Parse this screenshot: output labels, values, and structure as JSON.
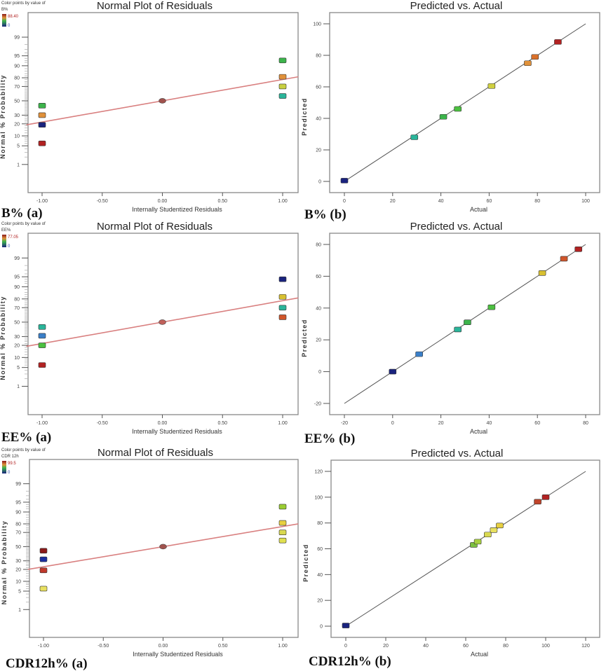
{
  "chart_data": [
    {
      "type": "scatter",
      "title": "Normal Plot of Residuals",
      "caption": "B% (a)",
      "xlabel": "Internally Studentized Residuals",
      "ylabel": "Normal % Probability",
      "x_ticks": [
        "-1.00",
        "-0.50",
        "0.00",
        "0.50",
        "1.00"
      ],
      "y_ticks": [
        1,
        5,
        10,
        20,
        30,
        50,
        70,
        80,
        90,
        95,
        99
      ],
      "y_scale": "normal-probability",
      "legend": {
        "title": "Color points by value of",
        "variable": "B%",
        "max": "88.40",
        "min": "0"
      },
      "fit_line": {
        "x": [
          -1.13,
          1.13
        ],
        "y": [
          19,
          81
        ],
        "color": "#d98080"
      },
      "points": [
        {
          "x": -1,
          "y": 43,
          "color": "#3cb44b"
        },
        {
          "x": -1,
          "y": 30,
          "color": "#e0913a"
        },
        {
          "x": -1,
          "y": 19,
          "color": "#1a237e"
        },
        {
          "x": -1,
          "y": 6,
          "color": "#b22222"
        },
        {
          "x": 0,
          "y": 50,
          "color": "#a0524d"
        },
        {
          "x": 1,
          "y": 93,
          "color": "#3cb44b"
        },
        {
          "x": 1,
          "y": 81,
          "color": "#e0913a"
        },
        {
          "x": 1,
          "y": 70,
          "color": "#c8d040"
        },
        {
          "x": 1,
          "y": 57,
          "color": "#2ab59a"
        }
      ]
    },
    {
      "type": "scatter",
      "title": "Predicted vs. Actual",
      "caption": "B% (b)",
      "xlabel": "Actual",
      "ylabel": "Predicted",
      "xlim": [
        0,
        100
      ],
      "ylim": [
        0,
        100
      ],
      "x_ticks": [
        "0",
        "20",
        "40",
        "60",
        "80",
        "100"
      ],
      "y_ticks": [
        "0",
        "20",
        "40",
        "60",
        "80",
        "100"
      ],
      "fit_line": {
        "x": [
          0,
          100
        ],
        "y": [
          0,
          100
        ],
        "color": "#555555"
      },
      "points": [
        {
          "x": 0,
          "y": 0.5,
          "color": "#1a237e"
        },
        {
          "x": 29,
          "y": 28,
          "color": "#2ab59a"
        },
        {
          "x": 41,
          "y": 41,
          "color": "#3cb44b"
        },
        {
          "x": 47,
          "y": 46,
          "color": "#4cc040"
        },
        {
          "x": 61,
          "y": 60.5,
          "color": "#d0d040"
        },
        {
          "x": 76,
          "y": 75,
          "color": "#e0913a"
        },
        {
          "x": 79,
          "y": 79,
          "color": "#d9702a"
        },
        {
          "x": 88.5,
          "y": 88.5,
          "color": "#b22222"
        }
      ]
    },
    {
      "type": "scatter",
      "title": "Normal Plot of Residuals",
      "caption": "EE% (a)",
      "xlabel": "Internally Studentized Residuals",
      "ylabel": "Normal % Probability",
      "x_ticks": [
        "-1.00",
        "-0.50",
        "0.00",
        "0.50",
        "1.00"
      ],
      "y_ticks": [
        1,
        5,
        10,
        20,
        30,
        50,
        70,
        80,
        90,
        95,
        99
      ],
      "y_scale": "normal-probability",
      "legend": {
        "title": "Color points by value of",
        "variable": "EE%",
        "max": "77.05",
        "min": "0"
      },
      "fit_line": {
        "x": [
          -1.13,
          1.13
        ],
        "y": [
          19,
          81
        ],
        "color": "#d98080"
      },
      "points": [
        {
          "x": -1,
          "y": 43,
          "color": "#2ab59a"
        },
        {
          "x": -1,
          "y": 31,
          "color": "#3a7fc8"
        },
        {
          "x": -1,
          "y": 20,
          "color": "#4cc040"
        },
        {
          "x": -1,
          "y": 6,
          "color": "#b22222"
        },
        {
          "x": 0,
          "y": 50,
          "color": "#c0605a"
        },
        {
          "x": 1,
          "y": 94,
          "color": "#1a237e"
        },
        {
          "x": 1,
          "y": 82,
          "color": "#d8c030"
        },
        {
          "x": 1,
          "y": 70,
          "color": "#2ab59a"
        },
        {
          "x": 1,
          "y": 57,
          "color": "#d0552a"
        }
      ]
    },
    {
      "type": "scatter",
      "title": "Predicted vs. Actual",
      "caption": "EE% (b)",
      "xlabel": "Actual",
      "ylabel": "Predicted",
      "xlim": [
        -20,
        80
      ],
      "ylim": [
        -20,
        80
      ],
      "x_ticks": [
        "-20",
        "0",
        "20",
        "40",
        "60",
        "80"
      ],
      "y_ticks": [
        "-20",
        "0",
        "20",
        "40",
        "60",
        "80"
      ],
      "fit_line": {
        "x": [
          -20,
          80
        ],
        "y": [
          -20,
          80
        ],
        "color": "#555555"
      },
      "points": [
        {
          "x": 0,
          "y": 0,
          "color": "#1a237e"
        },
        {
          "x": 11,
          "y": 11,
          "color": "#3a7fc8"
        },
        {
          "x": 27,
          "y": 26.5,
          "color": "#2ab59a"
        },
        {
          "x": 31,
          "y": 31,
          "color": "#3cb44b"
        },
        {
          "x": 41,
          "y": 40.5,
          "color": "#4cc040"
        },
        {
          "x": 62,
          "y": 62,
          "color": "#d8c030"
        },
        {
          "x": 71,
          "y": 71,
          "color": "#d0552a"
        },
        {
          "x": 77,
          "y": 77,
          "color": "#b22222"
        }
      ]
    },
    {
      "type": "scatter",
      "title": "Normal Plot of Residuals",
      "caption": "CDR12h% (a)",
      "xlabel": "Internally Studentized Residuals",
      "ylabel": "Normal % Probability",
      "x_ticks": [
        "-1.00",
        "-0.50",
        "0.00",
        "0.50",
        "1.00"
      ],
      "y_ticks": [
        1,
        5,
        10,
        20,
        30,
        50,
        70,
        80,
        90,
        95,
        99
      ],
      "y_scale": "normal-probability",
      "legend": {
        "title": "Color points by value of",
        "variable": "CDR 12h",
        "max": "99.5",
        "min": "0"
      },
      "fit_line": {
        "x": [
          -1.13,
          1.13
        ],
        "y": [
          20,
          80
        ],
        "color": "#d98080"
      },
      "points": [
        {
          "x": -1,
          "y": 44,
          "color": "#8b1a1a"
        },
        {
          "x": -1,
          "y": 32,
          "color": "#1a2ea0"
        },
        {
          "x": -1,
          "y": 19,
          "color": "#c0392b"
        },
        {
          "x": -1,
          "y": 6,
          "color": "#e8e060"
        },
        {
          "x": 0,
          "y": 50,
          "color": "#a0524d"
        },
        {
          "x": 1,
          "y": 93,
          "color": "#9acd32"
        },
        {
          "x": 1,
          "y": 81,
          "color": "#e8d040"
        },
        {
          "x": 1,
          "y": 70,
          "color": "#d8d850"
        },
        {
          "x": 1,
          "y": 59,
          "color": "#e0e050"
        }
      ]
    },
    {
      "type": "scatter",
      "title": "Predicted vs. Actual",
      "caption": "CDR12h% (b)",
      "xlabel": "Actual",
      "ylabel": "Predicted",
      "xlim": [
        0,
        120
      ],
      "ylim": [
        0,
        120
      ],
      "x_ticks": [
        "0",
        "20",
        "40",
        "60",
        "80",
        "100",
        "120"
      ],
      "y_ticks": [
        "0",
        "20",
        "40",
        "60",
        "80",
        "100",
        "120"
      ],
      "fit_line": {
        "x": [
          0,
          120
        ],
        "y": [
          0,
          120
        ],
        "color": "#555555"
      },
      "points": [
        {
          "x": 0,
          "y": 0.5,
          "color": "#1a237e"
        },
        {
          "x": 64,
          "y": 63,
          "color": "#7cc040"
        },
        {
          "x": 66,
          "y": 65.5,
          "color": "#a8d040"
        },
        {
          "x": 71,
          "y": 71,
          "color": "#d8d850"
        },
        {
          "x": 74,
          "y": 74.5,
          "color": "#e8e060"
        },
        {
          "x": 77,
          "y": 78,
          "color": "#e8d040"
        },
        {
          "x": 96,
          "y": 96.5,
          "color": "#c0442a"
        },
        {
          "x": 100,
          "y": 100,
          "color": "#b22222"
        }
      ]
    }
  ]
}
